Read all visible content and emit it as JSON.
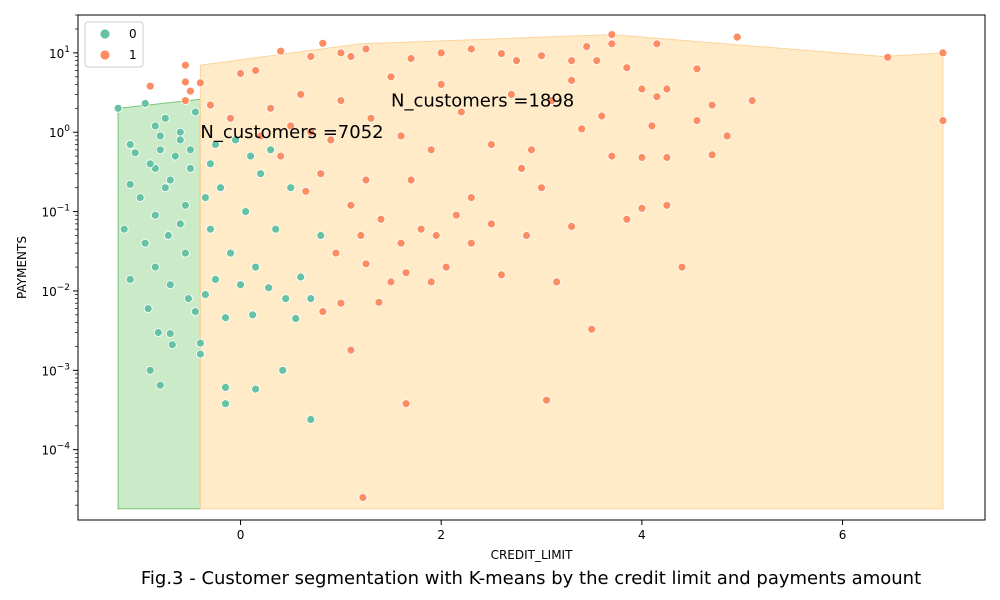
{
  "caption": "Fig.3 - Customer segmentation with K-means by the credit limit and payments amount",
  "chart_data": {
    "type": "scatter",
    "title": "",
    "xlabel": "CREDIT_LIMIT",
    "ylabel": "PAYMENTS",
    "xlim": [
      -1.62,
      7.42
    ],
    "ylim": [
      1.3e-05,
      30
    ],
    "yscale": "log",
    "x_ticks": [
      0,
      2,
      4,
      6
    ],
    "y_ticks": [
      {
        "value": 0.0001,
        "label": "10",
        "exp": "−4"
      },
      {
        "value": 0.001,
        "label": "10",
        "exp": "−3"
      },
      {
        "value": 0.01,
        "label": "10",
        "exp": "−2"
      },
      {
        "value": 0.1,
        "label": "10",
        "exp": "−1"
      },
      {
        "value": 1,
        "label": "10",
        "exp": "0"
      },
      {
        "value": 10,
        "label": "10",
        "exp": "1"
      }
    ],
    "legend": {
      "position": "top-left",
      "entries": [
        "0",
        "1"
      ]
    },
    "annotations": [
      {
        "text": "N_customers =7052",
        "x": -0.4,
        "y": 0.85
      },
      {
        "text": "N_customers =1898",
        "x": 1.5,
        "y": 2.1
      }
    ],
    "series": [
      {
        "name": "0",
        "color": "#66c2a5",
        "hull": [
          [
            -1.22,
            1.8e-05
          ],
          [
            -0.4,
            1.8e-05
          ],
          [
            -0.4,
            2.6
          ],
          [
            -1.22,
            2.0
          ]
        ],
        "points": [
          [
            -1.22,
            2.0
          ],
          [
            -1.16,
            0.06
          ],
          [
            -1.1,
            0.7
          ],
          [
            -1.1,
            0.22
          ],
          [
            -1.1,
            0.014
          ],
          [
            -1.05,
            0.55
          ],
          [
            -1.0,
            0.15
          ],
          [
            -0.95,
            2.3
          ],
          [
            -0.95,
            0.04
          ],
          [
            -0.92,
            0.006
          ],
          [
            -0.9,
            0.001
          ],
          [
            -0.85,
            1.2
          ],
          [
            -0.85,
            0.35
          ],
          [
            -0.85,
            0.09
          ],
          [
            -0.85,
            0.02
          ],
          [
            -0.82,
            0.003
          ],
          [
            -0.8,
            0.00065
          ],
          [
            -0.8,
            0.6
          ],
          [
            -0.75,
            1.5
          ],
          [
            -0.75,
            0.2
          ],
          [
            -0.72,
            0.05
          ],
          [
            -0.7,
            0.012
          ],
          [
            -0.7,
            0.0029
          ],
          [
            -0.68,
            0.0021
          ],
          [
            -0.65,
            0.5
          ],
          [
            -0.6,
            1.0
          ],
          [
            -0.6,
            0.8
          ],
          [
            -0.55,
            0.12
          ],
          [
            -0.55,
            0.03
          ],
          [
            -0.52,
            0.008
          ],
          [
            -0.5,
            0.35
          ],
          [
            -0.45,
            0.0055
          ],
          [
            -0.4,
            0.0016
          ],
          [
            -0.4,
            0.0022
          ],
          [
            -0.35,
            0.009
          ],
          [
            -0.3,
            0.4
          ],
          [
            -0.3,
            0.06
          ],
          [
            -0.25,
            0.014
          ],
          [
            -0.2,
            0.2
          ],
          [
            -0.15,
            0.0046
          ],
          [
            -0.15,
            0.00061
          ],
          [
            -0.15,
            0.00038
          ],
          [
            -0.1,
            0.03
          ],
          [
            -0.05,
            0.8
          ],
          [
            0.0,
            0.012
          ],
          [
            0.05,
            0.1
          ],
          [
            0.12,
            0.005
          ],
          [
            0.15,
            0.02
          ],
          [
            0.15,
            0.00058
          ],
          [
            0.2,
            0.3
          ],
          [
            0.28,
            0.011
          ],
          [
            0.35,
            0.06
          ],
          [
            0.42,
            0.001
          ],
          [
            0.45,
            0.008
          ],
          [
            0.55,
            0.0045
          ],
          [
            0.6,
            0.015
          ],
          [
            0.7,
            0.00024
          ],
          [
            0.7,
            0.008
          ],
          [
            0.8,
            0.05
          ],
          [
            0.3,
            0.6
          ],
          [
            0.5,
            0.2
          ],
          [
            0.1,
            0.5
          ],
          [
            -0.9,
            0.4
          ],
          [
            -0.8,
            0.9
          ],
          [
            -0.7,
            0.25
          ],
          [
            -0.6,
            0.07
          ],
          [
            -0.5,
            0.6
          ],
          [
            -0.45,
            1.8
          ],
          [
            -0.35,
            0.15
          ],
          [
            -0.25,
            0.7
          ]
        ]
      },
      {
        "name": "1",
        "color": "#fc8d62",
        "hull": [
          [
            -0.4,
            1.8e-05
          ],
          [
            7.0,
            1.8e-05
          ],
          [
            7.0,
            10
          ],
          [
            6.4,
            9
          ],
          [
            3.7,
            17
          ],
          [
            1.2,
            13
          ],
          [
            -0.4,
            7.0
          ]
        ],
        "points": [
          [
            -0.9,
            3.8
          ],
          [
            -0.55,
            7.0
          ],
          [
            -0.55,
            4.3
          ],
          [
            -0.55,
            2.5
          ],
          [
            -0.5,
            3.3
          ],
          [
            -0.4,
            4.2
          ],
          [
            -0.3,
            2.2
          ],
          [
            0.0,
            5.5
          ],
          [
            0.15,
            6.0
          ],
          [
            0.4,
            10.5
          ],
          [
            0.7,
            9.0
          ],
          [
            0.82,
            13.2
          ],
          [
            1.0,
            10.0
          ],
          [
            1.1,
            9.0
          ],
          [
            1.25,
            11.2
          ],
          [
            1.25,
            0.25
          ],
          [
            1.25,
            0.022
          ],
          [
            1.22,
            2.5e-05
          ],
          [
            1.1,
            0.0018
          ],
          [
            1.38,
            0.0072
          ],
          [
            1.65,
            0.00038
          ],
          [
            1.7,
            8.5
          ],
          [
            2.0,
            10.0
          ],
          [
            2.3,
            11.2
          ],
          [
            2.6,
            9.8
          ],
          [
            2.75,
            8.0
          ],
          [
            3.0,
            9.2
          ],
          [
            3.3,
            8.0
          ],
          [
            3.45,
            12.0
          ],
          [
            3.55,
            8.0
          ],
          [
            3.7,
            17.0
          ],
          [
            3.7,
            13.0
          ],
          [
            3.85,
            6.5
          ],
          [
            4.15,
            13.0
          ],
          [
            4.55,
            6.3
          ],
          [
            4.95,
            15.8
          ],
          [
            6.45,
            8.8
          ],
          [
            7.0,
            10.0
          ],
          [
            7.0,
            1.4
          ],
          [
            5.1,
            2.5
          ],
          [
            4.85,
            0.9
          ],
          [
            4.7,
            2.2
          ],
          [
            4.7,
            0.52
          ],
          [
            4.55,
            1.4
          ],
          [
            4.25,
            0.12
          ],
          [
            4.4,
            0.02
          ],
          [
            4.0,
            0.11
          ],
          [
            3.85,
            0.08
          ],
          [
            3.5,
            0.0033
          ],
          [
            3.05,
            0.00042
          ],
          [
            3.15,
            0.013
          ],
          [
            3.3,
            0.065
          ],
          [
            2.6,
            0.016
          ],
          [
            2.05,
            0.02
          ],
          [
            1.9,
            0.013
          ],
          [
            1.65,
            0.017
          ],
          [
            1.5,
            0.013
          ],
          [
            1.0,
            0.007
          ],
          [
            0.82,
            0.0055
          ],
          [
            4.0,
            0.48
          ],
          [
            4.25,
            0.48
          ],
          [
            4.25,
            3.5
          ],
          [
            4.15,
            2.8
          ],
          [
            4.0,
            3.5
          ],
          [
            3.0,
            0.2
          ],
          [
            2.85,
            0.05
          ],
          [
            2.5,
            0.07
          ],
          [
            2.3,
            0.04
          ],
          [
            2.15,
            0.09
          ],
          [
            1.95,
            0.05
          ],
          [
            1.8,
            0.06
          ],
          [
            1.6,
            0.04
          ],
          [
            1.4,
            0.08
          ],
          [
            1.2,
            0.05
          ],
          [
            0.95,
            0.03
          ],
          [
            0.65,
            0.18
          ],
          [
            0.5,
            1.2
          ],
          [
            0.3,
            2.0
          ],
          [
            0.6,
            3.0
          ],
          [
            0.9,
            0.8
          ],
          [
            1.3,
            1.5
          ],
          [
            1.6,
            0.9
          ],
          [
            1.9,
            0.6
          ],
          [
            2.2,
            1.8
          ],
          [
            2.5,
            0.7
          ],
          [
            2.8,
            0.35
          ],
          [
            3.1,
            2.5
          ],
          [
            3.4,
            1.1
          ],
          [
            3.7,
            0.5
          ],
          [
            2.0,
            4.0
          ],
          [
            1.5,
            5.0
          ],
          [
            1.0,
            2.5
          ],
          [
            0.7,
            1.0
          ],
          [
            2.7,
            3.0
          ],
          [
            3.3,
            4.5
          ],
          [
            3.6,
            1.6
          ],
          [
            4.1,
            1.2
          ],
          [
            0.8,
            0.3
          ],
          [
            1.1,
            0.12
          ],
          [
            1.7,
            0.25
          ],
          [
            2.3,
            0.15
          ],
          [
            2.9,
            0.6
          ],
          [
            0.4,
            0.5
          ],
          [
            -0.1,
            1.5
          ],
          [
            0.2,
            0.9
          ]
        ]
      }
    ]
  }
}
